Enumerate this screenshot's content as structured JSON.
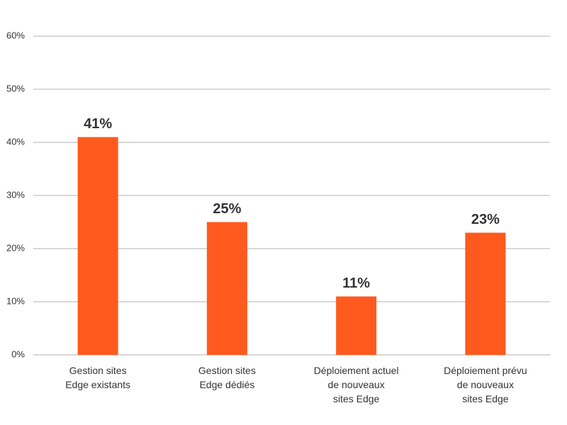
{
  "chart_data": {
    "type": "bar",
    "categories": [
      "Gestion sites\nEdge existants",
      "Gestion sites\nEdge dédiés",
      "Déploiement actuel\nde nouveaux\nsites Edge",
      "Déploiement prévu\nde nouveaux\nsites Edge"
    ],
    "values": [
      41,
      25,
      11,
      23
    ],
    "value_labels": [
      "41%",
      "25%",
      "11%",
      "23%"
    ],
    "color": "#ff5a1e",
    "ylim": [
      0,
      60
    ],
    "yticks": [
      {
        "value": 0,
        "label": "0%"
      },
      {
        "value": 10,
        "label": "10%"
      },
      {
        "value": 20,
        "label": "20%"
      },
      {
        "value": 30,
        "label": "30%"
      },
      {
        "value": 40,
        "label": "40%"
      },
      {
        "value": 50,
        "label": "50%"
      },
      {
        "value": 60,
        "label": "60%"
      }
    ],
    "grid": true
  }
}
